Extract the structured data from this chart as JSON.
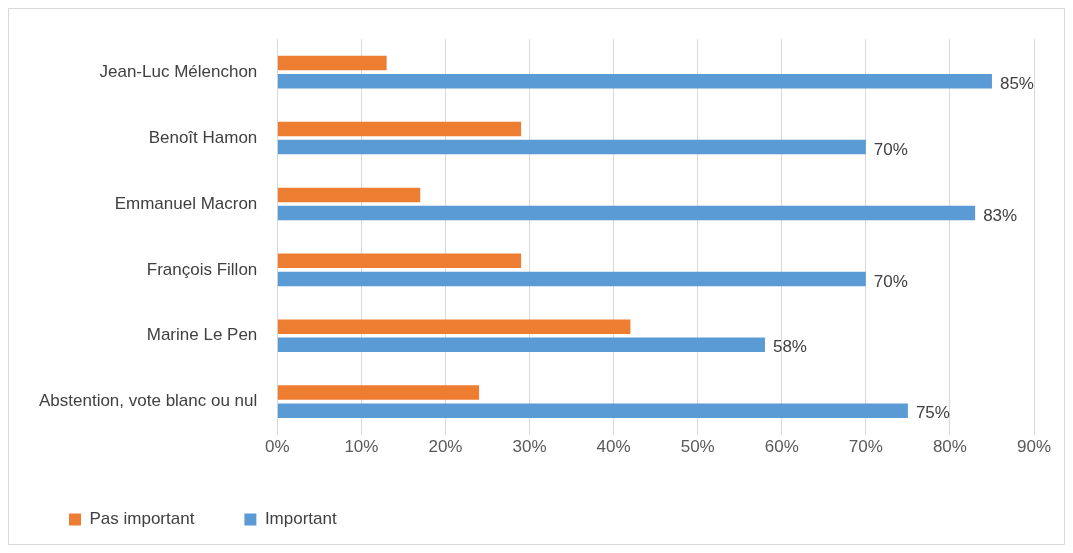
{
  "chart_data": {
    "type": "bar",
    "orientation": "horizontal",
    "categories": [
      "Jean-Luc Mélenchon",
      "Benoît Hamon",
      "Emmanuel Macron",
      "François Fillon",
      "Marine Le Pen",
      "Abstention, vote blanc ou nul"
    ],
    "series": [
      {
        "name": "Pas important",
        "color": "#ed7d31",
        "values": [
          13,
          29,
          17,
          29,
          42,
          24
        ]
      },
      {
        "name": "Important",
        "color": "#5b9bd5",
        "values": [
          85,
          70,
          83,
          70,
          58,
          75
        ],
        "value_labels": [
          "85%",
          "70%",
          "83%",
          "70%",
          "58%",
          "75%"
        ]
      }
    ],
    "xlim": [
      0,
      90
    ],
    "xticks": [
      {
        "value": 0,
        "label": "0%"
      },
      {
        "value": 10,
        "label": "10%"
      },
      {
        "value": 20,
        "label": "20%"
      },
      {
        "value": 30,
        "label": "30%"
      },
      {
        "value": 40,
        "label": "40%"
      },
      {
        "value": 50,
        "label": "50%"
      },
      {
        "value": 60,
        "label": "60%"
      },
      {
        "value": 70,
        "label": "70%"
      },
      {
        "value": 80,
        "label": "80%"
      },
      {
        "value": 90,
        "label": "90%"
      }
    ],
    "grid": "x",
    "legend": "bottom left"
  }
}
